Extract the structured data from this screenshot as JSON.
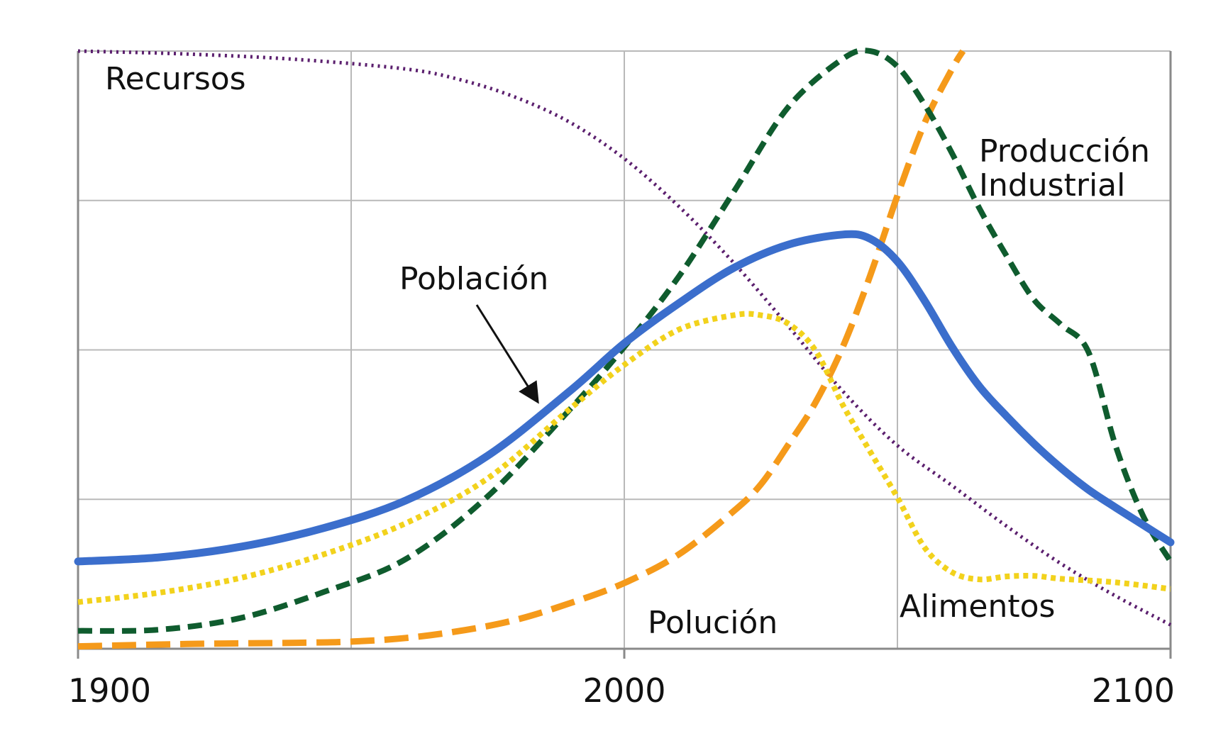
{
  "chart_data": {
    "type": "line",
    "title": "",
    "xlabel": "",
    "ylabel": "",
    "xlim": [
      1900,
      2100
    ],
    "ylim": [
      0,
      100
    ],
    "x_ticks": [
      1900,
      2000,
      2100
    ],
    "x_tick_labels": [
      "1900",
      "2000",
      "2100"
    ],
    "grid": true,
    "legend": "none",
    "series": [
      {
        "name": "Recursos",
        "color": "#5b1f6e",
        "style": "dotted",
        "x": [
          1900,
          1920,
          1940,
          1960,
          1970,
          1980,
          1990,
          2000,
          2010,
          2020,
          2030,
          2040,
          2050,
          2060,
          2070,
          2080,
          2090,
          2100
        ],
        "y": [
          100,
          99.5,
          98.6,
          97,
          95.2,
          92.3,
          88.1,
          82,
          74,
          64.6,
          54,
          43.1,
          34,
          27.3,
          20.5,
          14.2,
          8.8,
          4
        ]
      },
      {
        "name": "Producción Industrial",
        "color": "#0f5c2e",
        "style": "dashed",
        "x": [
          1900,
          1915,
          1930,
          1945,
          1960,
          1975,
          1990,
          2000,
          2010,
          2020,
          2030,
          2040,
          2045,
          2050,
          2055,
          2060,
          2065,
          2070,
          2075,
          2080,
          2085,
          2090,
          2095,
          2100
        ],
        "y": [
          3,
          3.2,
          5.2,
          9.5,
          15,
          25.5,
          40,
          50.5,
          62.3,
          76.4,
          90.6,
          98.7,
          100,
          97.4,
          91,
          82.9,
          73.7,
          65.7,
          58.4,
          54.2,
          49.6,
          33.8,
          22.2,
          14.6
        ]
      },
      {
        "name": "Población",
        "color": "#3b6ecc",
        "style": "solid",
        "x": [
          1900,
          1915,
          1930,
          1945,
          1960,
          1975,
          1990,
          2000,
          2010,
          2020,
          2030,
          2040,
          2045,
          2050,
          2055,
          2060,
          2065,
          2070,
          2075,
          2080,
          2085,
          2090,
          2095,
          2100
        ],
        "y": [
          14.6,
          15.3,
          17.1,
          20.2,
          24.8,
          32.3,
          43.1,
          51.1,
          57.8,
          63.7,
          67.6,
          69.3,
          68.6,
          64.8,
          58.2,
          50.5,
          43.9,
          38.9,
          34.3,
          30.2,
          26.6,
          23.6,
          20.7,
          17.8
        ]
      },
      {
        "name": "Alimentos",
        "color": "#f2d21c",
        "style": "dotted",
        "x": [
          1900,
          1915,
          1930,
          1945,
          1960,
          1975,
          1990,
          2000,
          2010,
          2020,
          2025,
          2030,
          2035,
          2040,
          2045,
          2050,
          2055,
          2060,
          2065,
          2070,
          2075,
          2080,
          2090,
          2100
        ],
        "y": [
          7.8,
          9.4,
          11.9,
          15.8,
          21,
          28.5,
          40.1,
          47.5,
          53.4,
          55.8,
          55.8,
          54.4,
          49.9,
          40.8,
          33,
          25.3,
          16.9,
          12.8,
          11.6,
          12.1,
          12.2,
          11.7,
          11.1,
          10
        ]
      },
      {
        "name": "Polución",
        "color": "#f59a1a",
        "style": "dashed",
        "x": [
          1900,
          1920,
          1940,
          1950,
          1960,
          1970,
          1980,
          1990,
          2000,
          2010,
          2020,
          2025,
          2030,
          2035,
          2040,
          2045,
          2050,
          2055,
          2060,
          2062
        ],
        "y": [
          0.4,
          0.8,
          1,
          1.2,
          1.8,
          3,
          4.8,
          7.6,
          11,
          15.8,
          23,
          27.5,
          34.1,
          41.2,
          50.5,
          62.4,
          75.8,
          88,
          97,
          100
        ]
      }
    ],
    "annotations": [
      {
        "text": "Recursos",
        "series": "Recursos"
      },
      {
        "text": "Producción\nIndustrial",
        "series": "Producción Industrial"
      },
      {
        "text": "Población",
        "series": "Población",
        "arrow": true
      },
      {
        "text": "Alimentos",
        "series": "Alimentos"
      },
      {
        "text": "Polución",
        "series": "Polución"
      }
    ]
  }
}
